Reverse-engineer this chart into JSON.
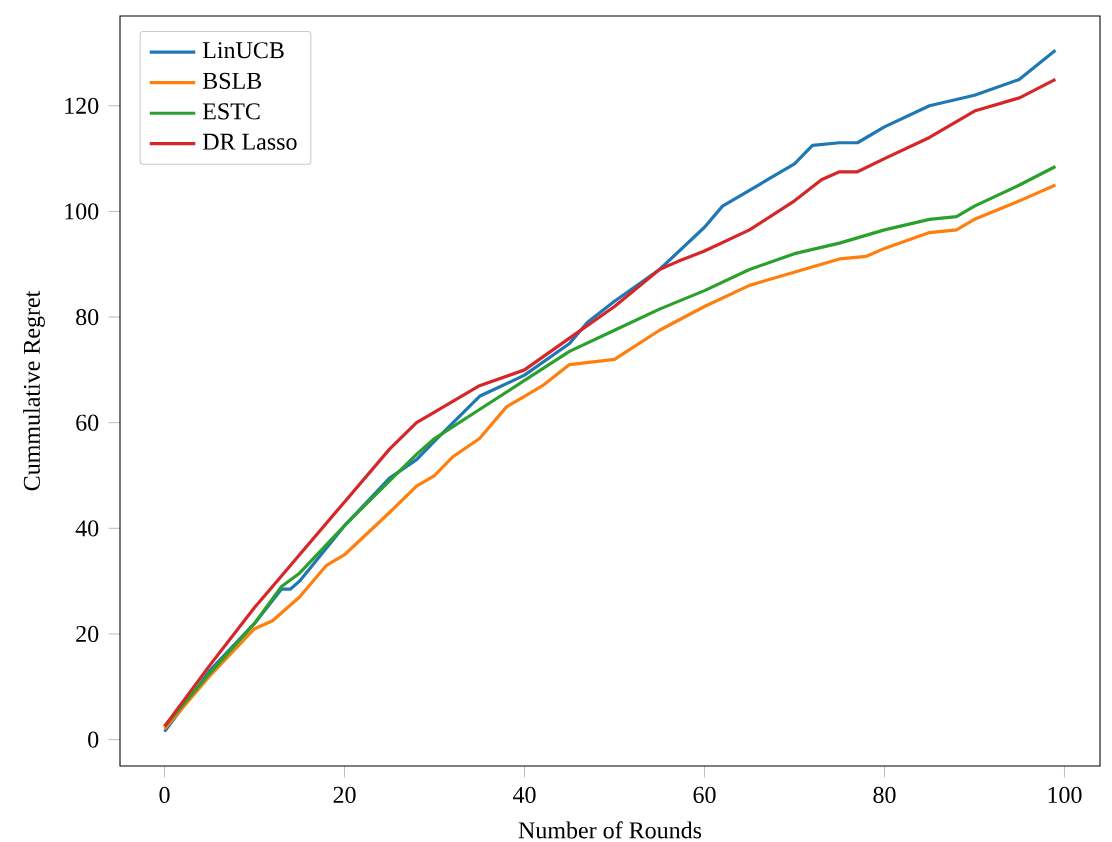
{
  "chart_data": {
    "type": "line",
    "xlabel": "Number of Rounds",
    "ylabel": "Cummulative Regret",
    "xlim": [
      -4.95,
      103.95
    ],
    "ylim": [
      -5,
      137
    ],
    "xticks": [
      0,
      20,
      40,
      60,
      80,
      100
    ],
    "yticks": [
      0,
      20,
      40,
      60,
      80,
      100,
      120
    ],
    "legend": "top left",
    "grid": false,
    "series": [
      {
        "name": "LinUCB",
        "color": "#1f77b4",
        "x": [
          0,
          5,
          10,
          13,
          14,
          15,
          20,
          25,
          28,
          30,
          35,
          40,
          45,
          47,
          50,
          55,
          60,
          62,
          65,
          70,
          72,
          75,
          77,
          80,
          85,
          90,
          95,
          99
        ],
        "values": [
          1.5,
          13,
          22,
          28.5,
          28.5,
          30,
          40.5,
          49.5,
          53,
          56.5,
          65,
          69,
          75,
          79,
          83,
          89,
          97,
          101,
          104,
          109,
          112.5,
          113,
          113,
          116,
          120,
          122,
          125,
          130.5
        ]
      },
      {
        "name": "BSLB",
        "color": "#ff7f0e",
        "x": [
          0,
          5,
          10,
          12,
          15,
          18,
          20,
          25,
          28,
          30,
          32,
          35,
          38,
          40,
          42,
          45,
          50,
          55,
          60,
          65,
          70,
          75,
          78,
          80,
          85,
          88,
          90,
          95,
          99
        ],
        "values": [
          2,
          12,
          21,
          22.5,
          27,
          33,
          35,
          43,
          48,
          50,
          53.5,
          57,
          63,
          65,
          67,
          71,
          72,
          77.5,
          82,
          86,
          88.5,
          91,
          91.5,
          93,
          96,
          96.5,
          98.5,
          102,
          105
        ]
      },
      {
        "name": "ESTC",
        "color": "#2ca02c",
        "x": [
          0,
          5,
          10,
          13,
          15,
          20,
          25,
          28,
          30,
          35,
          40,
          45,
          50,
          55,
          60,
          65,
          70,
          75,
          80,
          85,
          88,
          90,
          95,
          99
        ],
        "values": [
          2.5,
          12.5,
          22,
          29,
          31.5,
          40.5,
          49,
          54,
          57,
          62.5,
          68,
          73.5,
          77.5,
          81.5,
          85,
          89,
          92,
          94,
          96.5,
          98.5,
          99,
          101,
          105,
          108.5
        ]
      },
      {
        "name": "DR Lasso",
        "color": "#d62728",
        "x": [
          0,
          5,
          10,
          12,
          15,
          20,
          25,
          28,
          30,
          35,
          40,
          45,
          50,
          55,
          57,
          60,
          65,
          70,
          73,
          75,
          77,
          80,
          85,
          90,
          95,
          99
        ],
        "values": [
          2.5,
          14,
          25,
          29,
          35,
          45,
          55,
          60,
          62,
          67,
          70,
          76,
          82,
          89,
          90.5,
          92.5,
          96.5,
          102,
          106,
          107.5,
          107.5,
          110,
          114,
          119,
          121.5,
          125
        ]
      }
    ]
  }
}
